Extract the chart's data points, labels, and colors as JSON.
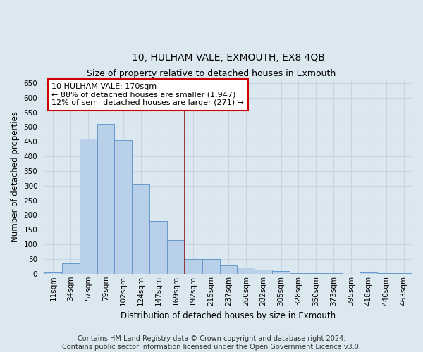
{
  "title": "10, HULHAM VALE, EXMOUTH, EX8 4QB",
  "subtitle": "Size of property relative to detached houses in Exmouth",
  "xlabel": "Distribution of detached houses by size in Exmouth",
  "ylabel": "Number of detached properties",
  "bin_labels": [
    "11sqm",
    "34sqm",
    "57sqm",
    "79sqm",
    "102sqm",
    "124sqm",
    "147sqm",
    "169sqm",
    "192sqm",
    "215sqm",
    "237sqm",
    "260sqm",
    "282sqm",
    "305sqm",
    "328sqm",
    "350sqm",
    "373sqm",
    "395sqm",
    "418sqm",
    "440sqm",
    "463sqm"
  ],
  "bar_values": [
    5,
    35,
    460,
    510,
    455,
    305,
    180,
    115,
    50,
    50,
    28,
    20,
    13,
    8,
    3,
    3,
    3,
    0,
    5,
    3,
    3
  ],
  "bar_color": "#b8d0e8",
  "bar_edge_color": "#6699cc",
  "vline_bin": 7,
  "vline_color": "#8b1a1a",
  "annotation_text": "10 HULHAM VALE: 170sqm\n← 88% of detached houses are smaller (1,947)\n12% of semi-detached houses are larger (271) →",
  "annotation_box_color": "white",
  "annotation_box_edge_color": "#cc0000",
  "ylim": [
    0,
    660
  ],
  "yticks": [
    0,
    50,
    100,
    150,
    200,
    250,
    300,
    350,
    400,
    450,
    500,
    550,
    600,
    650
  ],
  "grid_color": "#c8d4e4",
  "bg_color": "#dce8f0",
  "footer_line1": "Contains HM Land Registry data © Crown copyright and database right 2024.",
  "footer_line2": "Contains public sector information licensed under the Open Government Licence v3.0.",
  "title_fontsize": 10,
  "subtitle_fontsize": 9,
  "axis_label_fontsize": 8.5,
  "tick_fontsize": 7.5,
  "annotation_fontsize": 8,
  "footer_fontsize": 7
}
